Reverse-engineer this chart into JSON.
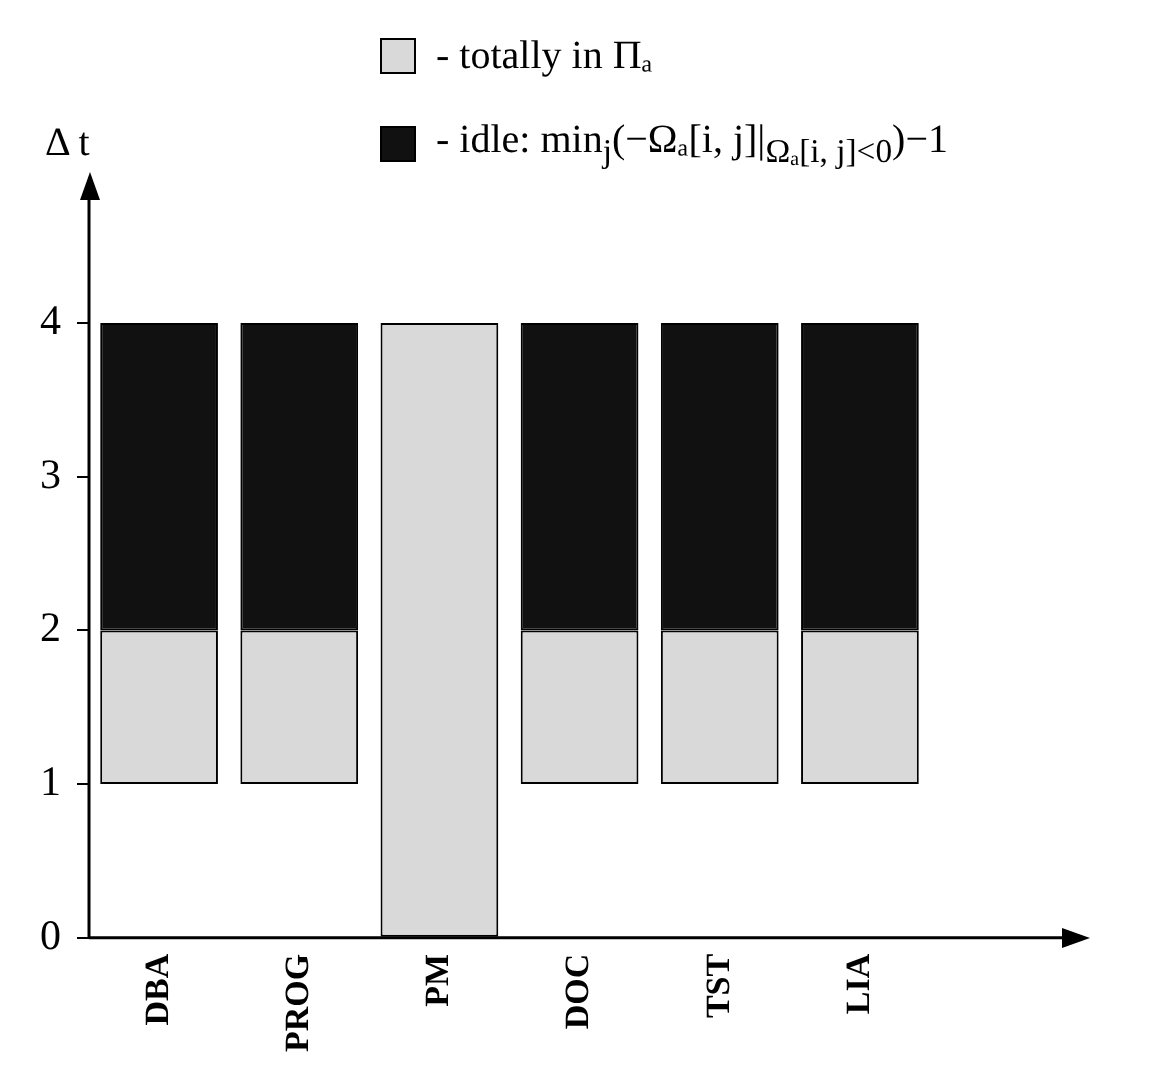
{
  "chart_data": {
    "type": "bar",
    "ylabel": "Δ t",
    "categories": [
      "DBA",
      "PROG",
      "PM",
      "DOC",
      "TST",
      "LIA"
    ],
    "series": [
      {
        "name": "- totally in Πₐ",
        "color": "#d9d9d9",
        "values": [
          1,
          1,
          4,
          1,
          1,
          1
        ],
        "base": [
          1,
          1,
          0,
          1,
          1,
          1
        ]
      },
      {
        "name": "- idle: min$_{j}$(−Ωₐ[i, j]|$_{Ωₐ[i, j]<0}$)−1",
        "color": "#111111",
        "values": [
          2,
          2,
          null,
          2,
          2,
          2
        ],
        "base": [
          2,
          2,
          null,
          2,
          2,
          2
        ]
      }
    ],
    "ylim": [
      0,
      4.8
    ],
    "yticks": [
      0,
      1,
      2,
      3,
      4
    ],
    "grid": false,
    "legend": "top"
  }
}
